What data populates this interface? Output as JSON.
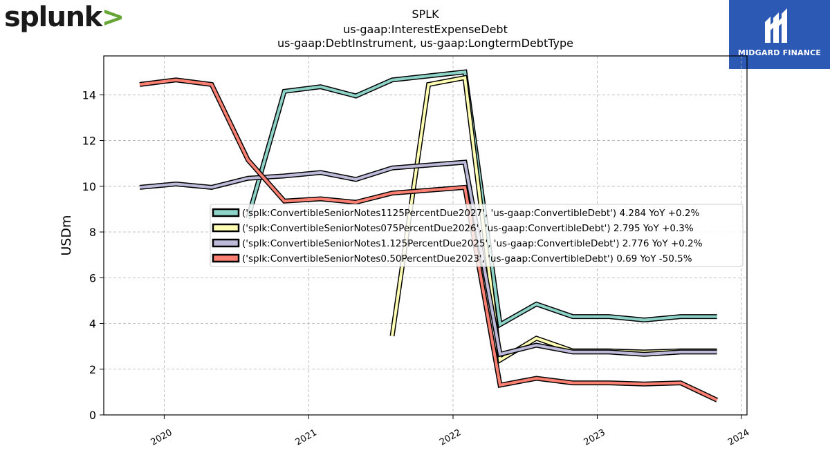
{
  "branding": {
    "left_logo_text": "splunk",
    "left_logo_mark": ">",
    "right_logo_text": "MIDGARD FINANCE"
  },
  "colors": {
    "series": [
      "#8dd3c7",
      "#ffffb3",
      "#bebada",
      "#fb8072"
    ],
    "outline": "#000000",
    "grid": "#b0b0b0",
    "brand_green": "#65a637",
    "brand_blue": "#2b59b4"
  },
  "chart_data": {
    "type": "line",
    "title": "SPLK",
    "subtitle_lines": [
      "us-gaap:InterestExpenseDebt",
      "us-gaap:DebtInstrument, us-gaap:LongtermDebtType"
    ],
    "xlabel": "",
    "ylabel": "USDm",
    "x_ticks": [
      "2020",
      "2021",
      "2022",
      "2023",
      "2024"
    ],
    "y_ticks": [
      0,
      2,
      4,
      6,
      8,
      10,
      12,
      14
    ],
    "xlim": [
      "2019-08-01",
      "2024-01-15"
    ],
    "ylim": [
      0,
      15.7
    ],
    "grid": true,
    "legend_position": "center-right",
    "series": [
      {
        "name": "('splk:ConvertibleSeniorNotes1125PercentDue2027', 'us-gaap:ConvertibleDebt') 4.284 YoY +0.2%",
        "x": [
          "2020-07-31",
          "2020-10-31",
          "2021-01-31",
          "2021-04-30",
          "2021-07-31",
          "2022-01-31",
          "2022-04-30",
          "2022-07-31",
          "2022-10-31",
          "2023-01-31",
          "2023-04-30",
          "2023-07-31",
          "2023-10-31"
        ],
        "values": [
          8.6,
          14.15,
          14.35,
          13.95,
          14.65,
          15.0,
          3.95,
          4.85,
          4.3,
          4.3,
          4.15,
          4.3,
          4.3
        ]
      },
      {
        "name": "('splk:ConvertibleSeniorNotes075PercentDue2026', 'us-gaap:ConvertibleDebt') 2.795 YoY +0.3%",
        "x": [
          "2021-07-31",
          "2021-10-31",
          "2022-01-31",
          "2022-04-30",
          "2022-07-31",
          "2022-10-31",
          "2023-01-31",
          "2023-04-30",
          "2023-07-31",
          "2023-10-31"
        ],
        "values": [
          3.45,
          14.45,
          14.75,
          2.4,
          3.35,
          2.8,
          2.8,
          2.75,
          2.8,
          2.8
        ]
      },
      {
        "name": "('splk:ConvertibleSeniorNotes1.125PercentDue2025', 'us-gaap:ConvertibleDebt') 2.776 YoY +0.2%",
        "x": [
          "2019-10-31",
          "2020-01-31",
          "2020-04-30",
          "2020-07-31",
          "2020-10-31",
          "2021-01-31",
          "2021-04-30",
          "2021-07-31",
          "2022-01-31",
          "2022-04-30",
          "2022-07-31",
          "2022-10-31",
          "2023-01-31",
          "2023-04-30",
          "2023-07-31",
          "2023-10-31"
        ],
        "values": [
          9.95,
          10.1,
          9.95,
          10.35,
          10.45,
          10.6,
          10.3,
          10.8,
          11.05,
          2.65,
          3.05,
          2.75,
          2.75,
          2.65,
          2.75,
          2.75
        ]
      },
      {
        "name": "('splk:ConvertibleSeniorNotes0.50PercentDue2023', 'us-gaap:ConvertibleDebt') 0.69 YoY -50.5%",
        "x": [
          "2019-10-31",
          "2020-01-31",
          "2020-04-30",
          "2020-07-31",
          "2020-10-31",
          "2021-01-31",
          "2021-04-30",
          "2021-07-31",
          "2022-01-31",
          "2022-04-30",
          "2022-07-31",
          "2022-10-31",
          "2023-01-31",
          "2023-04-30",
          "2023-07-31",
          "2023-10-31"
        ],
        "values": [
          14.45,
          14.65,
          14.45,
          11.15,
          9.35,
          9.45,
          9.3,
          9.7,
          9.95,
          1.3,
          1.6,
          1.4,
          1.4,
          1.35,
          1.4,
          0.65
        ]
      }
    ]
  }
}
